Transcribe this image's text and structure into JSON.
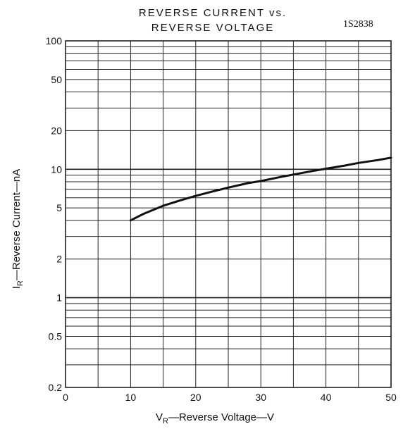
{
  "chart_data": {
    "type": "line",
    "title_line1": "REVERSE CURRENT vs.",
    "title_line2": "REVERSE VOLTAGE",
    "part_number": "1S2838",
    "x_label": {
      "main": "V",
      "sub": "R",
      "rest": "—Reverse Voltage—V"
    },
    "y_label": {
      "main": "I",
      "sub": "R",
      "rest": "—Reverse Current—nA"
    },
    "x_scale": "linear",
    "y_scale": "log",
    "xlim": [
      0,
      50
    ],
    "ylim": [
      0.2,
      100
    ],
    "x_ticks": [
      {
        "value": 0,
        "label": "0"
      },
      {
        "value": 10,
        "label": "10"
      },
      {
        "value": 20,
        "label": "20"
      },
      {
        "value": 30,
        "label": "30"
      },
      {
        "value": 40,
        "label": "40"
      },
      {
        "value": 50,
        "label": "50"
      }
    ],
    "y_ticks": [
      {
        "value": 0.2,
        "label": "0.2"
      },
      {
        "value": 0.5,
        "label": "0.5"
      },
      {
        "value": 1,
        "label": "1"
      },
      {
        "value": 2,
        "label": "2"
      },
      {
        "value": 5,
        "label": "5"
      },
      {
        "value": 10,
        "label": "10"
      },
      {
        "value": 20,
        "label": "20"
      },
      {
        "value": 50,
        "label": "50"
      },
      {
        "value": 100,
        "label": "100"
      }
    ],
    "grid": true,
    "series": [
      {
        "x": [
          10,
          12,
          15,
          18,
          20,
          22,
          25,
          28,
          30,
          33,
          35,
          38,
          40,
          43,
          45,
          48,
          50
        ],
        "y": [
          4.0,
          4.5,
          5.2,
          5.8,
          6.2,
          6.6,
          7.2,
          7.8,
          8.1,
          8.7,
          9.1,
          9.7,
          10.1,
          10.7,
          11.2,
          11.8,
          12.3
        ]
      }
    ],
    "colors": {
      "line": "#111111",
      "grid": "#222222",
      "background": "#ffffff"
    }
  }
}
